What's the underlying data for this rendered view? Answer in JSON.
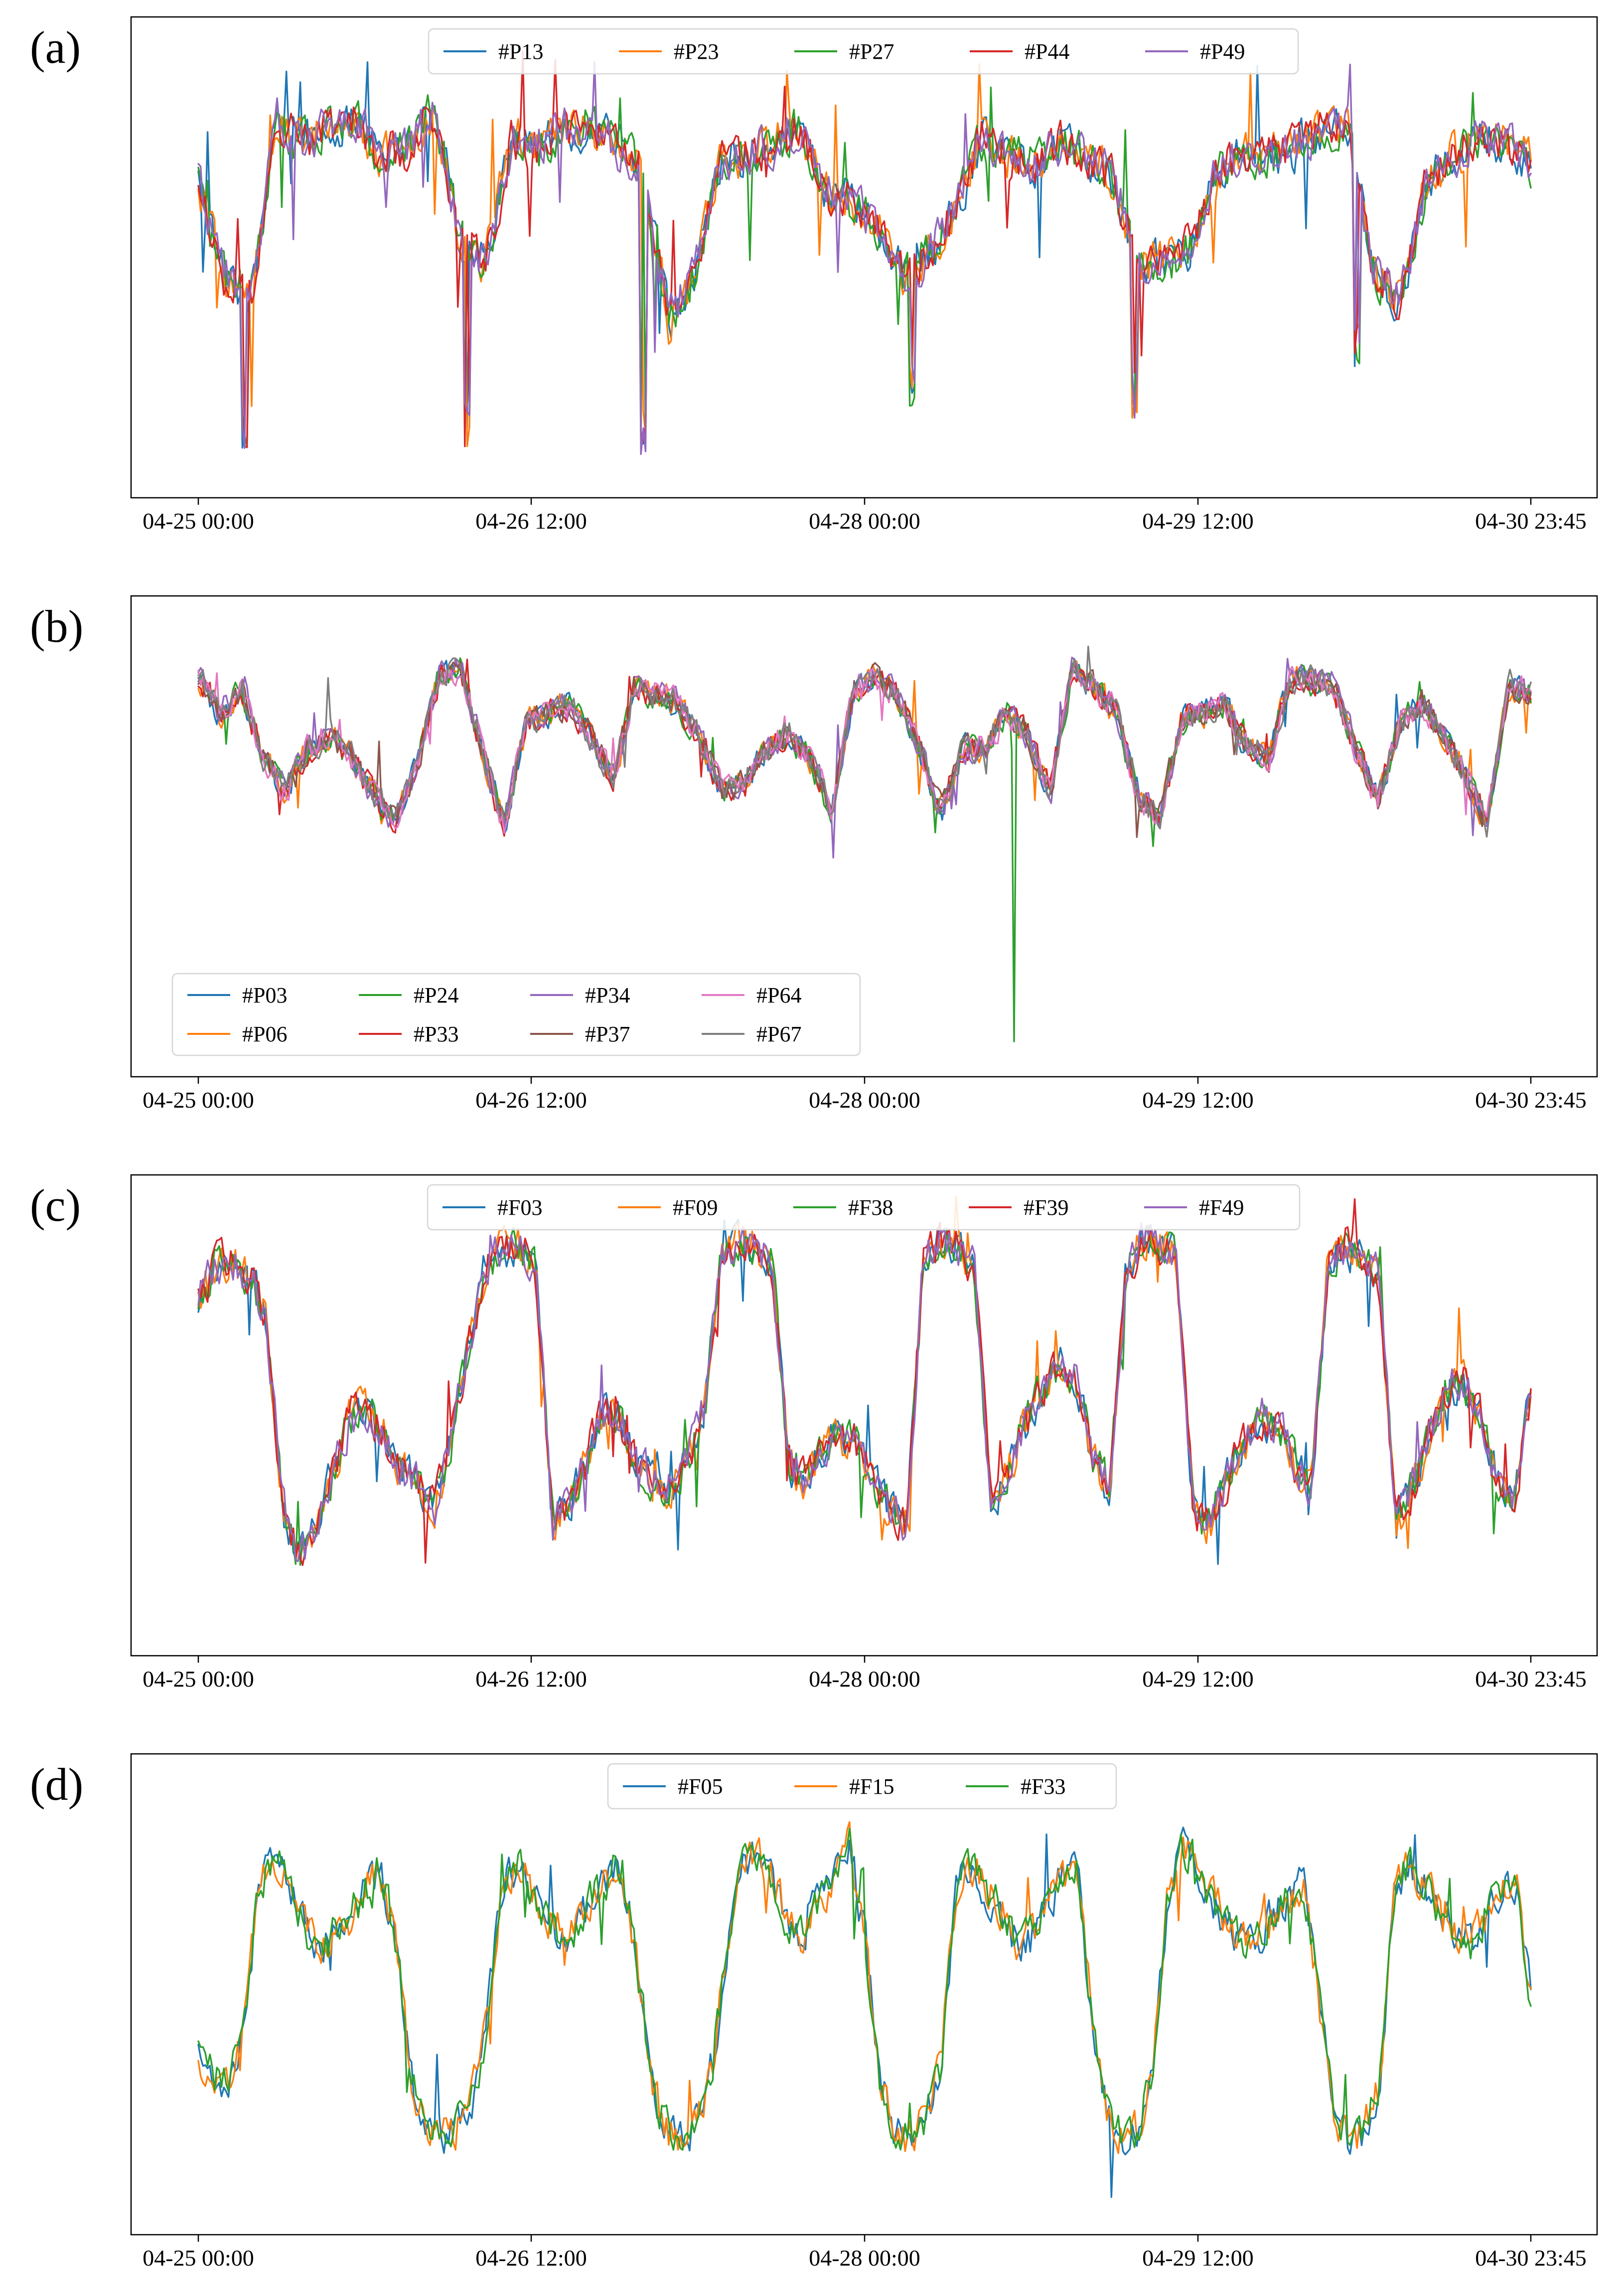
{
  "chart_data": [
    {
      "type": "line",
      "panel_label": "(a)",
      "x_tick_labels": [
        "04-25 00:00",
        "04-26 12:00",
        "04-28 00:00",
        "04-29 12:00",
        "04-30 23:45"
      ],
      "x_range_hours": [
        0,
        143.75
      ],
      "y_ticks_visible": false,
      "legend": {
        "placement": "top-center",
        "columns": 5
      },
      "series": [
        {
          "name": "#P13",
          "color": "#1f77b4"
        },
        {
          "name": "#P23",
          "color": "#ff7f0e"
        },
        {
          "name": "#P27",
          "color": "#2ca02c"
        },
        {
          "name": "#P44",
          "color": "#d62728"
        },
        {
          "name": "#P49",
          "color": "#9467bd"
        }
      ],
      "profile_values": [
        0.66,
        0.45,
        0.4,
        0.8,
        0.75,
        0.78,
        0.8,
        0.72,
        0.74,
        0.82,
        0.55,
        0.48,
        0.76,
        0.74,
        0.78,
        0.79,
        0.74,
        0.7,
        0.35,
        0.45,
        0.72,
        0.72,
        0.75,
        0.78,
        0.64,
        0.62,
        0.56,
        0.46,
        0.5,
        0.6,
        0.76,
        0.72,
        0.7,
        0.75,
        0.72,
        0.67,
        0.48,
        0.48,
        0.52,
        0.68,
        0.72,
        0.72,
        0.74,
        0.78,
        0.78,
        0.46,
        0.4,
        0.66,
        0.72,
        0.75,
        0.76,
        0.7
      ],
      "dips": [
        {
          "hour": 5,
          "value": 0.07
        },
        {
          "hour": 29,
          "value": 0.07
        },
        {
          "hour": 48,
          "value": 0.05
        },
        {
          "hour": 77,
          "value": 0.16
        },
        {
          "hour": 101,
          "value": 0.14
        },
        {
          "hour": 125,
          "value": 0.24
        }
      ],
      "y_range": [
        0,
        1
      ]
    },
    {
      "type": "line",
      "panel_label": "(b)",
      "x_tick_labels": [
        "04-25 00:00",
        "04-26 12:00",
        "04-28 00:00",
        "04-29 12:00",
        "04-30 23:45"
      ],
      "x_range_hours": [
        0,
        143.75
      ],
      "y_ticks_visible": false,
      "legend": {
        "placement": "lower-left",
        "columns": 4
      },
      "series": [
        {
          "name": "#P03",
          "color": "#1f77b4"
        },
        {
          "name": "#P06",
          "color": "#ff7f0e"
        },
        {
          "name": "#P24",
          "color": "#2ca02c"
        },
        {
          "name": "#P33",
          "color": "#d62728"
        },
        {
          "name": "#P34",
          "color": "#9467bd"
        },
        {
          "name": "#P37",
          "color": "#8c564b"
        },
        {
          "name": "#P64",
          "color": "#e377c2"
        },
        {
          "name": "#P67",
          "color": "#7f7f7f"
        }
      ],
      "profile_values": [
        0.88,
        0.8,
        0.85,
        0.7,
        0.62,
        0.72,
        0.75,
        0.7,
        0.62,
        0.55,
        0.68,
        0.88,
        0.9,
        0.72,
        0.54,
        0.78,
        0.8,
        0.82,
        0.74,
        0.65,
        0.86,
        0.84,
        0.82,
        0.74,
        0.62,
        0.64,
        0.72,
        0.75,
        0.7,
        0.58,
        0.85,
        0.88,
        0.84,
        0.72,
        0.58,
        0.72,
        0.72,
        0.8,
        0.75,
        0.62,
        0.9,
        0.86,
        0.8,
        0.62,
        0.56,
        0.78,
        0.8,
        0.82,
        0.72,
        0.7,
        0.88,
        0.87,
        0.86,
        0.72,
        0.6,
        0.78,
        0.82,
        0.75,
        0.66,
        0.55,
        0.86,
        0.84
      ],
      "spike": {
        "series": "#P24",
        "hour": 88,
        "value": 0.04
      },
      "y_range": [
        0,
        1
      ]
    },
    {
      "type": "line",
      "panel_label": "(c)",
      "x_tick_labels": [
        "04-25 00:00",
        "04-26 12:00",
        "04-28 00:00",
        "04-29 12:00",
        "04-30 23:45"
      ],
      "x_range_hours": [
        0,
        143.75
      ],
      "y_ticks_visible": false,
      "legend": {
        "placement": "top-center",
        "columns": 5
      },
      "series": [
        {
          "name": "#F03",
          "color": "#1f77b4"
        },
        {
          "name": "#F09",
          "color": "#ff7f0e"
        },
        {
          "name": "#F38",
          "color": "#2ca02c"
        },
        {
          "name": "#F39",
          "color": "#d62728"
        },
        {
          "name": "#F49",
          "color": "#9467bd"
        }
      ],
      "profile_values": [
        0.76,
        0.84,
        0.85,
        0.82,
        0.72,
        0.3,
        0.18,
        0.26,
        0.38,
        0.5,
        0.52,
        0.46,
        0.38,
        0.36,
        0.3,
        0.44,
        0.66,
        0.84,
        0.88,
        0.88,
        0.84,
        0.26,
        0.3,
        0.4,
        0.52,
        0.5,
        0.4,
        0.36,
        0.34,
        0.4,
        0.52,
        0.86,
        0.9,
        0.88,
        0.86,
        0.4,
        0.36,
        0.42,
        0.46,
        0.44,
        0.36,
        0.3,
        0.26,
        0.86,
        0.9,
        0.88,
        0.84,
        0.3,
        0.38,
        0.48,
        0.56,
        0.62,
        0.58,
        0.42,
        0.34,
        0.82,
        0.9,
        0.88,
        0.86,
        0.28,
        0.26,
        0.36,
        0.44,
        0.5,
        0.48,
        0.4,
        0.34,
        0.86,
        0.88,
        0.86,
        0.82,
        0.26,
        0.34,
        0.46,
        0.56,
        0.58,
        0.5,
        0.36,
        0.3,
        0.56
      ],
      "y_range": [
        0,
        1
      ]
    },
    {
      "type": "line",
      "panel_label": "(d)",
      "x_tick_labels": [
        "04-25 00:00",
        "04-26 12:00",
        "04-28 00:00",
        "04-29 12:00",
        "04-30 23:45"
      ],
      "x_range_hours": [
        0,
        143.75
      ],
      "y_ticks_visible": false,
      "legend": {
        "placement": "top-center",
        "columns": 3
      },
      "series": [
        {
          "name": "#F05",
          "color": "#1f77b4"
        },
        {
          "name": "#F15",
          "color": "#ff7f0e"
        },
        {
          "name": "#F33",
          "color": "#2ca02c"
        }
      ],
      "profile_values": [
        0.34,
        0.3,
        0.28,
        0.42,
        0.72,
        0.78,
        0.74,
        0.64,
        0.58,
        0.62,
        0.66,
        0.72,
        0.76,
        0.62,
        0.3,
        0.2,
        0.16,
        0.18,
        0.24,
        0.4,
        0.72,
        0.78,
        0.72,
        0.66,
        0.62,
        0.64,
        0.7,
        0.74,
        0.78,
        0.54,
        0.28,
        0.18,
        0.16,
        0.2,
        0.34,
        0.62,
        0.76,
        0.8,
        0.74,
        0.64,
        0.62,
        0.7,
        0.74,
        0.82,
        0.62,
        0.3,
        0.18,
        0.16,
        0.2,
        0.32,
        0.7,
        0.78,
        0.72,
        0.68,
        0.6,
        0.62,
        0.68,
        0.74,
        0.78,
        0.44,
        0.22,
        0.16,
        0.18,
        0.3,
        0.7,
        0.82,
        0.76,
        0.7,
        0.64,
        0.6,
        0.62,
        0.66,
        0.7,
        0.74,
        0.48,
        0.22,
        0.16,
        0.18,
        0.28,
        0.7,
        0.78,
        0.72,
        0.68,
        0.62,
        0.6,
        0.66,
        0.7,
        0.74,
        0.48
      ],
      "y_range": [
        0,
        1
      ]
    }
  ]
}
